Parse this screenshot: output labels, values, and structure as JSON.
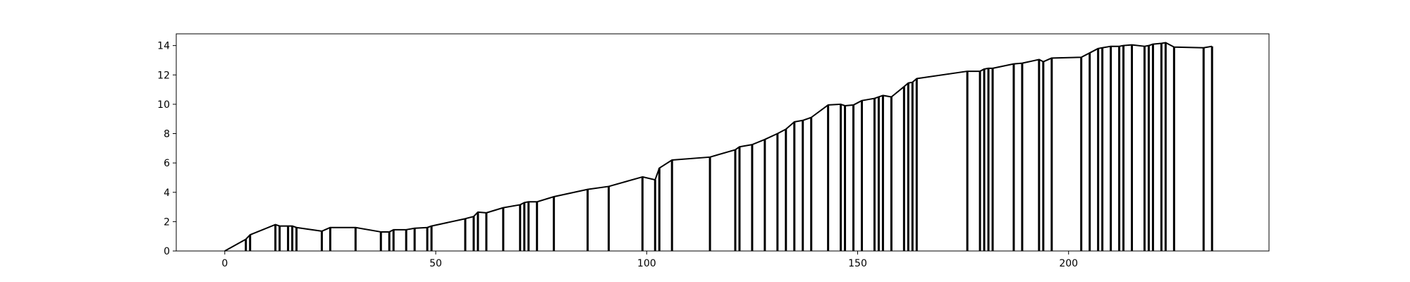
{
  "chart_data": {
    "type": "line",
    "title": "",
    "xlabel": "",
    "ylabel": "",
    "xlim": [
      -11.5,
      247.5
    ],
    "ylim": [
      0,
      14.8
    ],
    "x_ticks": [
      0,
      50,
      100,
      150,
      200
    ],
    "x_tick_labels": [
      "0",
      "50",
      "100",
      "150",
      "200"
    ],
    "y_ticks": [
      0,
      2,
      4,
      6,
      8,
      10,
      12,
      14
    ],
    "y_tick_labels": [
      "0",
      "2",
      "4",
      "6",
      "8",
      "10",
      "12",
      "14"
    ],
    "grid": false,
    "line_color": "#000000",
    "series": [
      {
        "x": [
          0,
          5,
          6,
          12,
          13,
          15,
          16,
          17,
          23,
          25,
          31,
          37,
          39,
          40,
          43,
          45,
          48,
          49,
          57,
          59,
          60,
          62,
          66,
          70,
          71,
          72,
          74,
          78,
          86,
          91,
          99,
          102,
          103,
          106,
          115,
          121,
          122,
          125,
          128,
          131,
          133,
          135,
          137,
          139,
          143,
          146,
          147,
          149,
          151,
          154,
          155,
          156,
          158,
          161,
          162,
          163,
          164,
          176,
          179,
          180,
          181,
          182,
          187,
          189,
          193,
          194,
          196,
          203,
          205,
          207,
          208,
          210,
          212,
          213,
          215,
          218,
          219,
          220,
          222,
          223,
          225,
          232,
          234
        ],
        "y": [
          0.0,
          0.8,
          1.1,
          1.8,
          1.7,
          1.7,
          1.7,
          1.6,
          1.35,
          1.6,
          1.6,
          1.3,
          1.3,
          1.45,
          1.45,
          1.55,
          1.6,
          1.7,
          2.2,
          2.35,
          2.65,
          2.6,
          2.95,
          3.15,
          3.3,
          3.35,
          3.35,
          3.7,
          4.2,
          4.4,
          5.05,
          4.85,
          5.65,
          6.2,
          6.4,
          6.9,
          7.1,
          7.25,
          7.6,
          8.0,
          8.3,
          8.8,
          8.9,
          9.1,
          9.95,
          10.0,
          9.9,
          9.95,
          10.25,
          10.4,
          10.5,
          10.6,
          10.5,
          11.2,
          11.45,
          11.5,
          11.75,
          12.25,
          12.25,
          12.4,
          12.45,
          12.45,
          12.75,
          12.8,
          13.05,
          12.9,
          13.15,
          13.2,
          13.5,
          13.8,
          13.85,
          13.95,
          13.95,
          14.0,
          14.05,
          13.95,
          14.0,
          14.1,
          14.15,
          14.2,
          13.9,
          13.85,
          13.95
        ]
      }
    ]
  }
}
